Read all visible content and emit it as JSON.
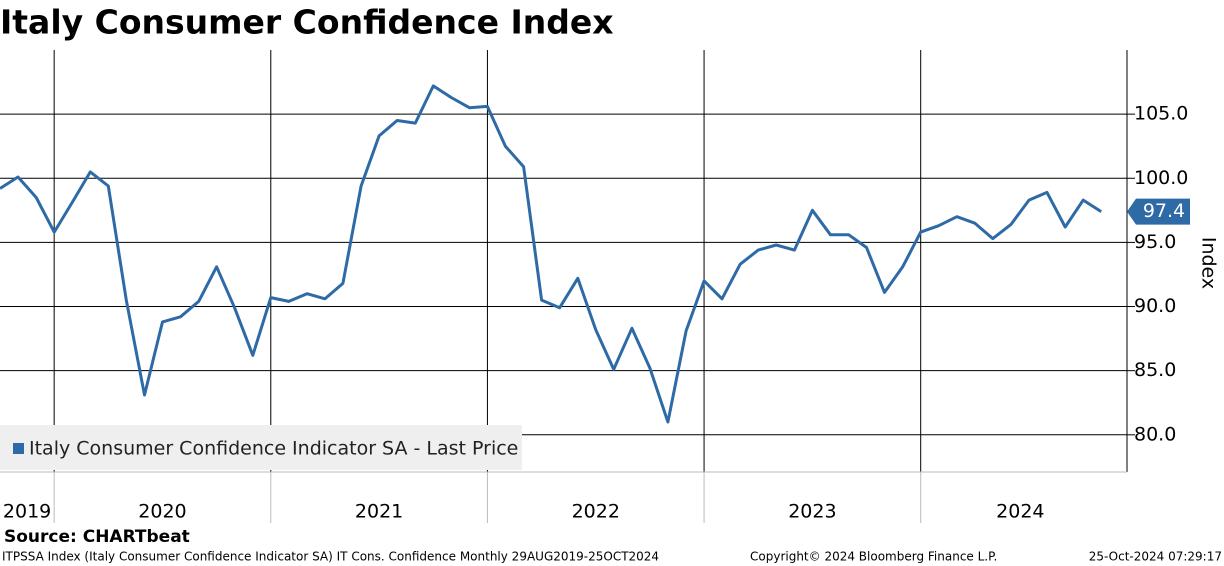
{
  "chart_data": {
    "type": "line",
    "title": "Italy Consumer Confidence Index",
    "y_label": "Index",
    "source": "Source: CHARTbeat",
    "footer_left": "ITPSSA Index (Italy Consumer Confidence Indicator SA) IT Cons. Confidence  Monthly 29AUG2019-25OCT2024",
    "footer_center": "Copyright© 2024 Bloomberg Finance L.P.",
    "footer_right": "25-Oct-2024 07:29:17",
    "last_price_label": "97.4",
    "x": [
      2019.75,
      2019.833,
      2019.917,
      2020,
      2020.083,
      2020.167,
      2020.25,
      2020.333,
      2020.417,
      2020.5,
      2020.583,
      2020.667,
      2020.75,
      2020.833,
      2020.917,
      2021,
      2021.083,
      2021.167,
      2021.25,
      2021.333,
      2021.417,
      2021.5,
      2021.583,
      2021.667,
      2021.75,
      2021.833,
      2021.917,
      2022,
      2022.083,
      2022.167,
      2022.25,
      2022.333,
      2022.417,
      2022.5,
      2022.583,
      2022.667,
      2022.75,
      2022.833,
      2022.917,
      2023,
      2023.083,
      2023.167,
      2023.25,
      2023.333,
      2023.417,
      2023.5,
      2023.583,
      2023.667,
      2023.75,
      2023.833,
      2023.917,
      2024,
      2024.083,
      2024.167,
      2024.25,
      2024.333,
      2024.417,
      2024.5,
      2024.583,
      2024.667,
      2024.75,
      2024.833
    ],
    "series": [
      {
        "name": "Italy Consumer Confidence Indicator SA - Last Price",
        "color": "#2e6aa6",
        "values": [
          99.2,
          100.1,
          98.5,
          95.8,
          98.1,
          100.5,
          99.4,
          90.5,
          83.1,
          88.8,
          89.2,
          90.4,
          93.1,
          89.9,
          86.2,
          90.7,
          90.4,
          91.0,
          90.6,
          91.8,
          99.4,
          103.3,
          104.5,
          104.3,
          107.2,
          106.3,
          105.5,
          105.6,
          102.5,
          100.9,
          90.5,
          89.9,
          92.2,
          88.2,
          85.1,
          88.3,
          85.2,
          81.0,
          88.1,
          92.0,
          90.6,
          93.3,
          94.4,
          94.8,
          94.4,
          97.5,
          95.6,
          95.6,
          94.6,
          91.1,
          93.1,
          95.8,
          96.3,
          97.0,
          96.5,
          95.3,
          96.4,
          98.3,
          98.9,
          96.2,
          98.3,
          97.4
        ]
      }
    ],
    "xlim": [
      2019.75,
      2024.92
    ],
    "xticks": [
      2020,
      2021,
      2022,
      2023,
      2024
    ],
    "year_labels": [
      2019,
      2020,
      2021,
      2022,
      2023,
      2024
    ],
    "ylim": [
      77.1,
      110
    ],
    "yticks": [
      {
        "value": 80,
        "label": "80.0"
      },
      {
        "value": 85,
        "label": "85.0"
      },
      {
        "value": 90,
        "label": "90.0"
      },
      {
        "value": 95,
        "label": "95.0"
      },
      {
        "value": 100,
        "label": "100.0"
      },
      {
        "value": 105,
        "label": "105.0"
      }
    ],
    "grid": true
  }
}
